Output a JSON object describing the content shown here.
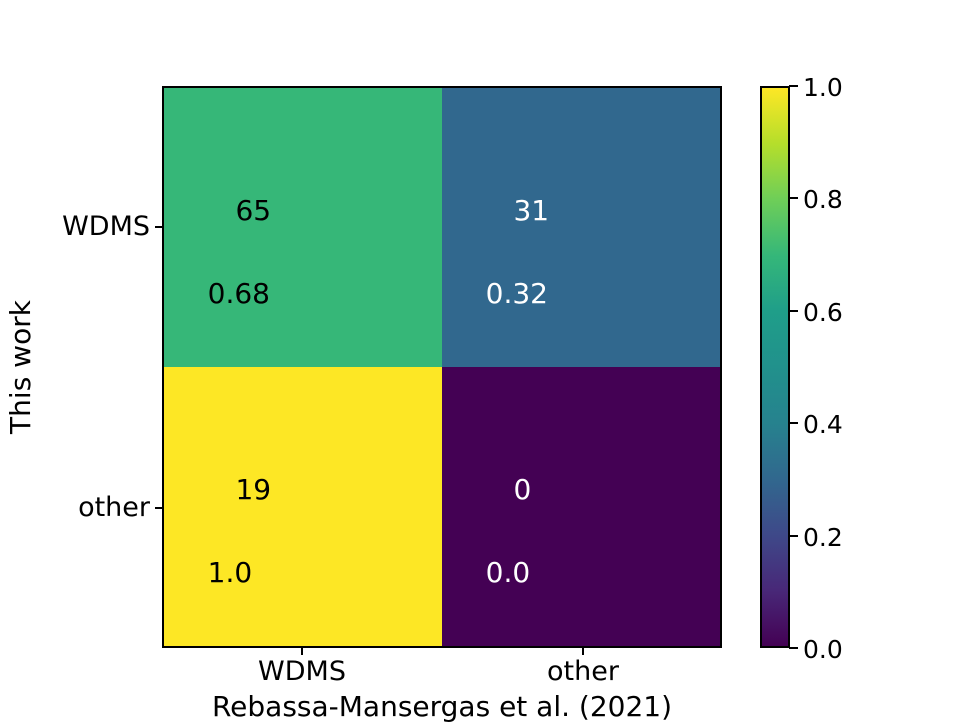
{
  "figure": {
    "xlabel": "Rebassa-Mansergas et al. (2021)",
    "ylabel": "This work",
    "x_tick_labels": [
      "WDMS",
      "other"
    ],
    "y_tick_labels": [
      "WDMS",
      "other"
    ]
  },
  "cells": [
    {
      "row": "WDMS",
      "col": "WDMS",
      "count": "65",
      "fraction": "0.68",
      "bg": "#36b778",
      "fg": "#000000"
    },
    {
      "row": "WDMS",
      "col": "other",
      "count": "31",
      "fraction": "0.32",
      "bg": "#31688e",
      "fg": "#ffffff"
    },
    {
      "row": "other",
      "col": "WDMS",
      "count": "19",
      "fraction": "1.0",
      "bg": "#fde725",
      "fg": "#000000"
    },
    {
      "row": "other",
      "col": "other",
      "count": "0",
      "fraction": "0.0",
      "bg": "#440154",
      "fg": "#ffffff"
    }
  ],
  "colorbar": {
    "tick_labels": [
      "1.0",
      "0.8",
      "0.6",
      "0.4",
      "0.2",
      "0.0"
    ],
    "gradient_stops": [
      "#440154",
      "#482878",
      "#3e4989",
      "#31688e",
      "#26828e",
      "#21918c",
      "#1f9e89",
      "#35b779",
      "#6ece58",
      "#b5de2b",
      "#fde725"
    ]
  },
  "chart_data": {
    "type": "heatmap",
    "subtype": "confusion-matrix",
    "title": "",
    "xlabel": "Rebassa-Mansergas et al. (2021)",
    "ylabel": "This work",
    "x_categories": [
      "WDMS",
      "other"
    ],
    "y_categories": [
      "WDMS",
      "other"
    ],
    "counts": [
      [
        65,
        31
      ],
      [
        19,
        0
      ]
    ],
    "row_fractions": [
      [
        0.68,
        0.32
      ],
      [
        1.0,
        0.0
      ]
    ],
    "cell_color_values": [
      [
        0.68,
        0.32
      ],
      [
        1.0,
        0.0
      ]
    ],
    "colormap": "viridis",
    "colorbar_range": [
      0.0,
      1.0
    ],
    "colorbar_ticks": [
      0.0,
      0.2,
      0.4,
      0.6,
      0.8,
      1.0
    ],
    "colorbar_position": "right",
    "grid": false
  }
}
